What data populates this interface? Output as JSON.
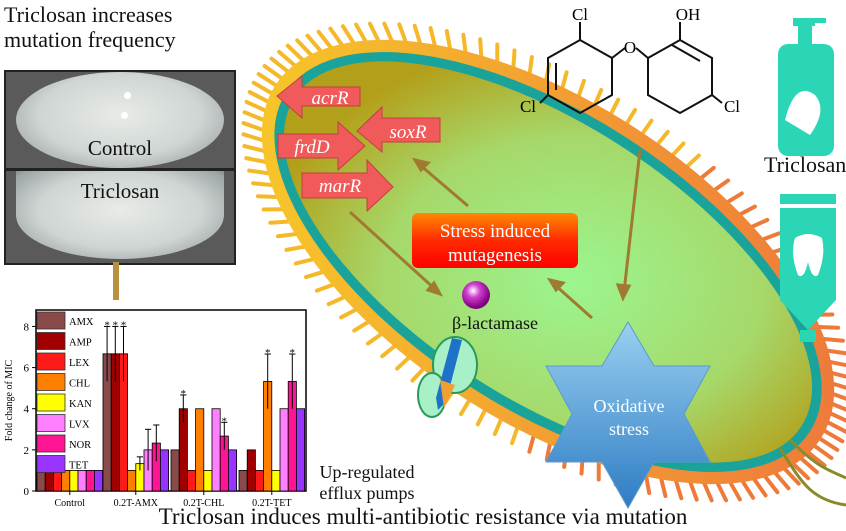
{
  "header": {
    "title": "Triclosan increases mutation frequency"
  },
  "plates": [
    {
      "label": "Control"
    },
    {
      "label": "Triclosan"
    }
  ],
  "cell": {
    "genes": [
      "acrR",
      "soxR",
      "frdD",
      "marR"
    ],
    "stress_box": "Stress induced mutagenesis",
    "stress_box_lines": [
      "Stress induced",
      "mutagenesis"
    ],
    "enzyme": "β-lactamase",
    "oxidative": [
      "Oxidative",
      "stress"
    ],
    "efflux": [
      "Up-regulated",
      "efflux pumps"
    ]
  },
  "molecule": {
    "name": "Triclosan",
    "atoms": [
      "Cl",
      "OH",
      "O",
      "Cl",
      "Cl"
    ]
  },
  "footer": {
    "caption": "Triclosan induces multi-antibiotic resistance via mutation"
  },
  "colors": {
    "membrane": "#1aa39a",
    "cytoplasm": "#9be88c",
    "pili": "#f5b829",
    "gene_arrow": "#f05a5a",
    "stress_box": "#ff2a00",
    "product": "#2bd6b6"
  },
  "chart_data": {
    "type": "bar",
    "ylabel": "Fold change of MIC",
    "xlabel": "",
    "ylim": [
      0,
      8.8
    ],
    "yticks": [
      0,
      2,
      4,
      6,
      8
    ],
    "categories": [
      "Control",
      "0.2T-AMX",
      "0.2T-CHL",
      "0.2T-TET"
    ],
    "legend_position": "top-left",
    "series": [
      {
        "name": "AMX",
        "color": "#8b4a4a",
        "values": [
          1,
          6.67,
          2,
          1
        ],
        "err": [
          0,
          1.33,
          0,
          0
        ],
        "sig": [
          "",
          "*",
          "",
          ""
        ]
      },
      {
        "name": "AMP",
        "color": "#a00000",
        "values": [
          1,
          6.67,
          4,
          2
        ],
        "err": [
          0,
          1.33,
          0.67,
          0
        ],
        "sig": [
          "",
          "*",
          "*",
          ""
        ]
      },
      {
        "name": "LEX",
        "color": "#ff1a1a",
        "values": [
          1,
          6.67,
          1,
          1
        ],
        "err": [
          0,
          1.33,
          0,
          0
        ],
        "sig": [
          "",
          "*",
          "",
          ""
        ]
      },
      {
        "name": "CHL",
        "color": "#ff8000",
        "values": [
          1,
          1,
          4,
          5.33
        ],
        "err": [
          0,
          0,
          0,
          1.33
        ],
        "sig": [
          "",
          "",
          "",
          "*"
        ]
      },
      {
        "name": "KAN",
        "color": "#ffff00",
        "values": [
          1,
          1.33,
          1,
          1
        ],
        "err": [
          0,
          0.33,
          0,
          0
        ],
        "sig": [
          "",
          "",
          "",
          ""
        ]
      },
      {
        "name": "LVX",
        "color": "#ff80ff",
        "values": [
          1,
          2,
          4,
          4
        ],
        "err": [
          0,
          1,
          0,
          0
        ],
        "sig": [
          "",
          "",
          "",
          ""
        ]
      },
      {
        "name": "NOR",
        "color": "#ff1493",
        "values": [
          1,
          2.33,
          2.67,
          5.33
        ],
        "err": [
          0,
          0.88,
          0.67,
          1.33
        ],
        "sig": [
          "",
          "",
          "*",
          "*"
        ]
      },
      {
        "name": "TET",
        "color": "#9933ff",
        "values": [
          1,
          2,
          2,
          4
        ],
        "err": [
          0,
          0,
          0,
          0
        ],
        "sig": [
          "",
          "",
          "",
          ""
        ]
      }
    ]
  }
}
